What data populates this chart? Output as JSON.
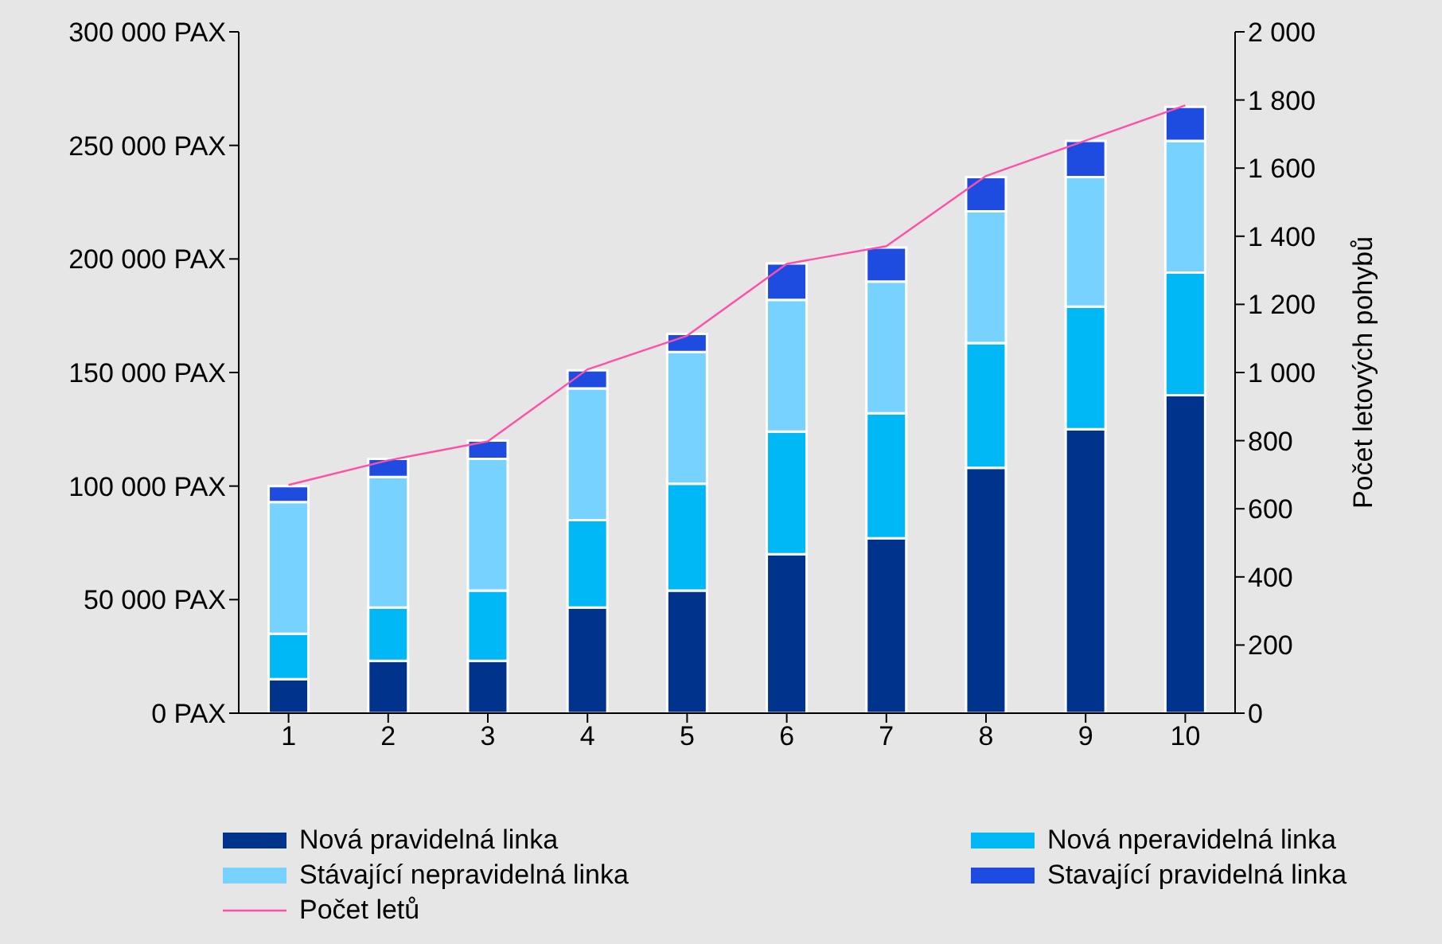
{
  "chart_data": {
    "type": "bar",
    "stacked": true,
    "ylabel": null,
    "y2label": "Počet letových pohybů",
    "categories": [
      "1",
      "2",
      "3",
      "4",
      "5",
      "6",
      "7",
      "8",
      "9",
      "10"
    ],
    "series": [
      {
        "name": "Nová pravidelná linka",
        "color": "#00338c",
        "values": [
          15000,
          23000,
          23000,
          46500,
          54000,
          70000,
          77000,
          108000,
          125000,
          140000
        ]
      },
      {
        "name": "Nová nperavidelná linka",
        "color": "#00b8f5",
        "values": [
          20000,
          23500,
          31000,
          38500,
          47000,
          54000,
          55000,
          55000,
          54000,
          54000
        ]
      },
      {
        "name": "Stávající nepravidelná linka",
        "color": "#78d2ff",
        "values": [
          58000,
          57500,
          58000,
          58000,
          58000,
          58000,
          58000,
          58000,
          57000,
          58000
        ]
      },
      {
        "name": "Stavající pravidelná linka",
        "color": "#1e4be0",
        "values": [
          7000,
          8000,
          8000,
          8000,
          8000,
          16000,
          15000,
          15000,
          16000,
          15000
        ]
      },
      {
        "name": "Počet letů",
        "type": "line",
        "axis": "y2",
        "color": "#ff4fa8",
        "values": [
          670,
          742,
          798,
          1009,
          1108,
          1319,
          1371,
          1577,
          1681,
          1784
        ]
      }
    ],
    "ylim": [
      0,
      300000
    ],
    "yticks": [
      {
        "value": 0,
        "label": "0 PAX"
      },
      {
        "value": 50000,
        "label": "50 000 PAX"
      },
      {
        "value": 100000,
        "label": "100 000 PAX"
      },
      {
        "value": 150000,
        "label": "150 000 PAX"
      },
      {
        "value": 200000,
        "label": "200 000 PAX"
      },
      {
        "value": 250000,
        "label": "250 000 PAX"
      },
      {
        "value": 300000,
        "label": "300 000 PAX"
      }
    ],
    "y2lim": [
      0,
      2000
    ],
    "y2ticks": [
      0,
      200,
      400,
      600,
      800,
      {
        "value": 1000,
        "label": "1 000"
      },
      {
        "value": 1200,
        "label": "1 200"
      },
      {
        "value": 1400,
        "label": "1 400"
      },
      {
        "value": 1600,
        "label": "1 600"
      },
      {
        "value": 1800,
        "label": "1 800"
      },
      {
        "value": 2000,
        "label": "2 000"
      }
    ],
    "legend": "bottom",
    "marker": "none",
    "grid": false
  }
}
